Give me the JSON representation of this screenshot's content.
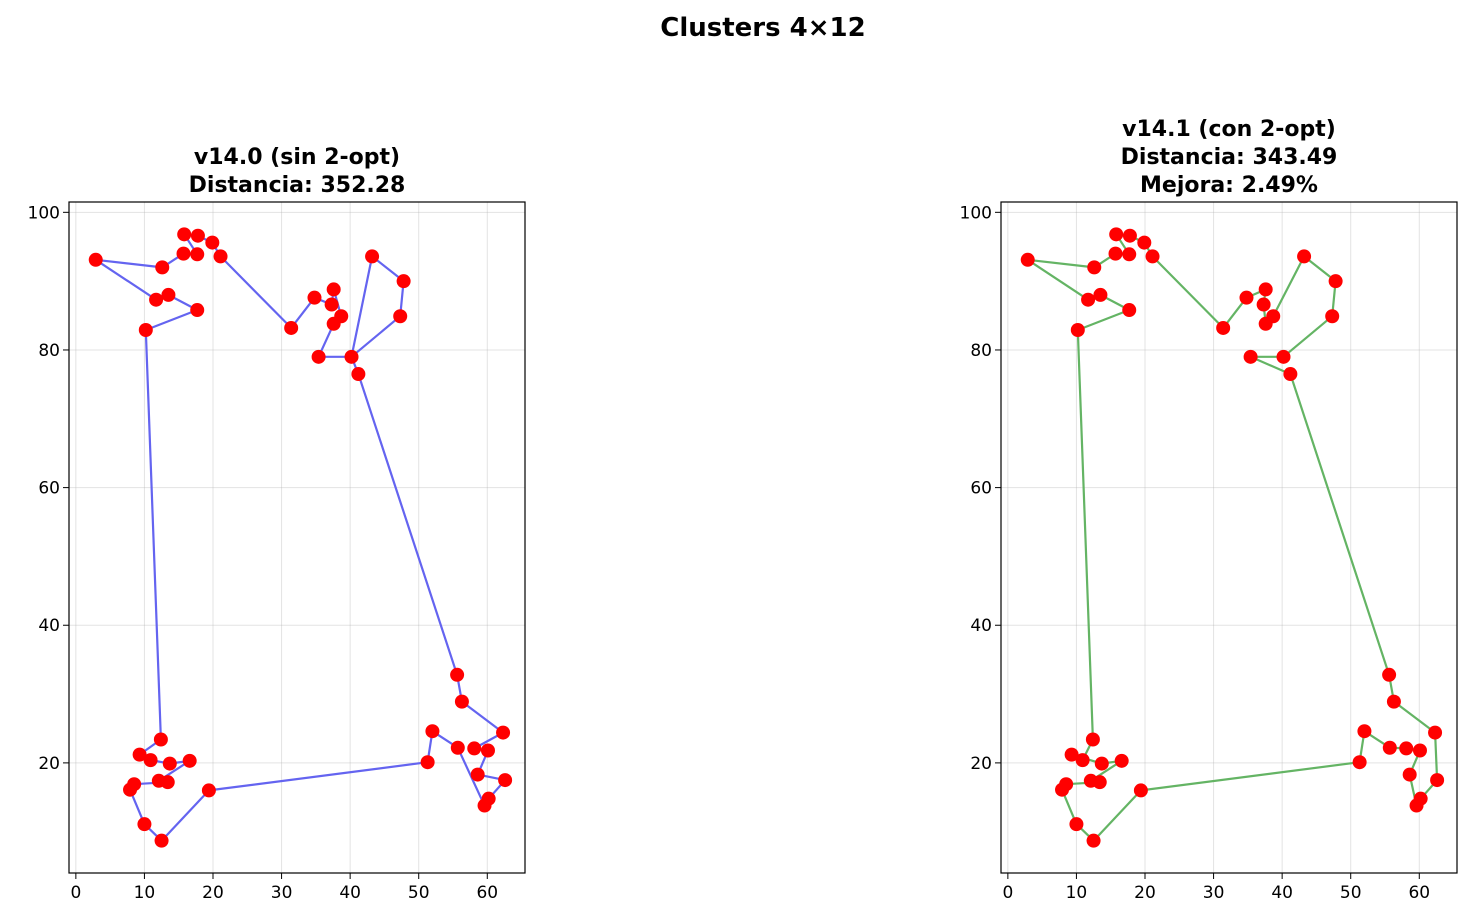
{
  "figure": {
    "suptitle": "Clusters 4×12"
  },
  "chart_data": [
    {
      "type": "line",
      "title_lines": [
        "v14.0 (sin 2-opt)",
        "Distancia: 352.28"
      ],
      "xlabel": "",
      "ylabel": "",
      "xlim": [
        -1,
        65.5
      ],
      "ylim": [
        4,
        101.5
      ],
      "xticks": [
        0,
        10,
        20,
        30,
        40,
        50,
        60
      ],
      "yticks": [
        20,
        40,
        60,
        80,
        100
      ],
      "grid": true,
      "line_color": "#6464f0",
      "marker_color": "#ff0000",
      "tour": [
        [
          12.4,
          23.4
        ],
        [
          10.2,
          82.9
        ],
        [
          17.7,
          85.8
        ],
        [
          13.5,
          88.0
        ],
        [
          11.7,
          87.3
        ],
        [
          2.9,
          93.1
        ],
        [
          12.6,
          92.0
        ],
        [
          15.7,
          94.0
        ],
        [
          17.7,
          93.9
        ],
        [
          15.8,
          96.8
        ],
        [
          17.8,
          96.6
        ],
        [
          19.9,
          95.6
        ],
        [
          21.1,
          93.6
        ],
        [
          31.4,
          83.2
        ],
        [
          34.8,
          87.6
        ],
        [
          37.3,
          86.6
        ],
        [
          37.6,
          88.8
        ],
        [
          38.7,
          84.9
        ],
        [
          37.6,
          83.8
        ],
        [
          35.4,
          79.0
        ],
        [
          40.2,
          79.0
        ],
        [
          43.2,
          93.6
        ],
        [
          47.8,
          90.0
        ],
        [
          47.3,
          84.9
        ],
        [
          40.2,
          79.0
        ],
        [
          41.2,
          76.5
        ],
        [
          55.6,
          32.8
        ],
        [
          56.3,
          28.9
        ],
        [
          62.3,
          24.4
        ],
        [
          58.1,
          22.1
        ],
        [
          60.1,
          21.8
        ],
        [
          58.6,
          18.3
        ],
        [
          62.6,
          17.5
        ],
        [
          60.2,
          14.8
        ],
        [
          59.6,
          13.8
        ],
        [
          55.7,
          22.2
        ],
        [
          52.0,
          24.6
        ],
        [
          51.3,
          20.1
        ],
        [
          19.4,
          16.0
        ],
        [
          12.5,
          8.7
        ],
        [
          10.0,
          11.1
        ],
        [
          7.9,
          16.1
        ],
        [
          8.5,
          16.9
        ],
        [
          13.4,
          17.2
        ],
        [
          12.1,
          17.4
        ],
        [
          16.6,
          20.3
        ],
        [
          13.7,
          19.9
        ],
        [
          10.9,
          20.4
        ],
        [
          9.3,
          21.2
        ],
        [
          12.4,
          23.4
        ]
      ]
    },
    {
      "type": "line",
      "title_lines": [
        "v14.1 (con 2-opt)",
        "Distancia: 343.49",
        "Mejora: 2.49%"
      ],
      "xlabel": "",
      "ylabel": "",
      "xlim": [
        -1,
        65.5
      ],
      "ylim": [
        4,
        101.5
      ],
      "xticks": [
        0,
        10,
        20,
        30,
        40,
        50,
        60
      ],
      "yticks": [
        20,
        40,
        60,
        80,
        100
      ],
      "grid": true,
      "line_color": "#64b464",
      "marker_color": "#ff0000",
      "tour": [
        [
          12.4,
          23.4
        ],
        [
          10.9,
          20.4
        ],
        [
          9.3,
          21.2
        ],
        [
          13.7,
          19.9
        ],
        [
          16.6,
          20.3
        ],
        [
          12.1,
          17.4
        ],
        [
          13.4,
          17.2
        ],
        [
          8.5,
          16.9
        ],
        [
          7.9,
          16.1
        ],
        [
          10.0,
          11.1
        ],
        [
          12.5,
          8.7
        ],
        [
          19.4,
          16.0
        ],
        [
          51.3,
          20.1
        ],
        [
          52.0,
          24.6
        ],
        [
          55.7,
          22.2
        ],
        [
          58.1,
          22.1
        ],
        [
          60.1,
          21.8
        ],
        [
          58.6,
          18.3
        ],
        [
          59.6,
          13.8
        ],
        [
          60.2,
          14.8
        ],
        [
          62.6,
          17.5
        ],
        [
          62.3,
          24.4
        ],
        [
          56.3,
          28.9
        ],
        [
          55.6,
          32.8
        ],
        [
          41.2,
          76.5
        ],
        [
          35.4,
          79.0
        ],
        [
          40.2,
          79.0
        ],
        [
          47.3,
          84.9
        ],
        [
          47.8,
          90.0
        ],
        [
          43.2,
          93.6
        ],
        [
          38.7,
          84.9
        ],
        [
          37.6,
          83.8
        ],
        [
          37.3,
          86.6
        ],
        [
          37.6,
          88.8
        ],
        [
          34.8,
          87.6
        ],
        [
          31.4,
          83.2
        ],
        [
          21.1,
          93.6
        ],
        [
          19.9,
          95.6
        ],
        [
          17.8,
          96.6
        ],
        [
          15.8,
          96.8
        ],
        [
          17.7,
          93.9
        ],
        [
          15.7,
          94.0
        ],
        [
          12.6,
          92.0
        ],
        [
          2.9,
          93.1
        ],
        [
          11.7,
          87.3
        ],
        [
          13.5,
          88.0
        ],
        [
          17.7,
          85.8
        ],
        [
          10.2,
          82.9
        ],
        [
          12.4,
          23.4
        ]
      ]
    }
  ]
}
